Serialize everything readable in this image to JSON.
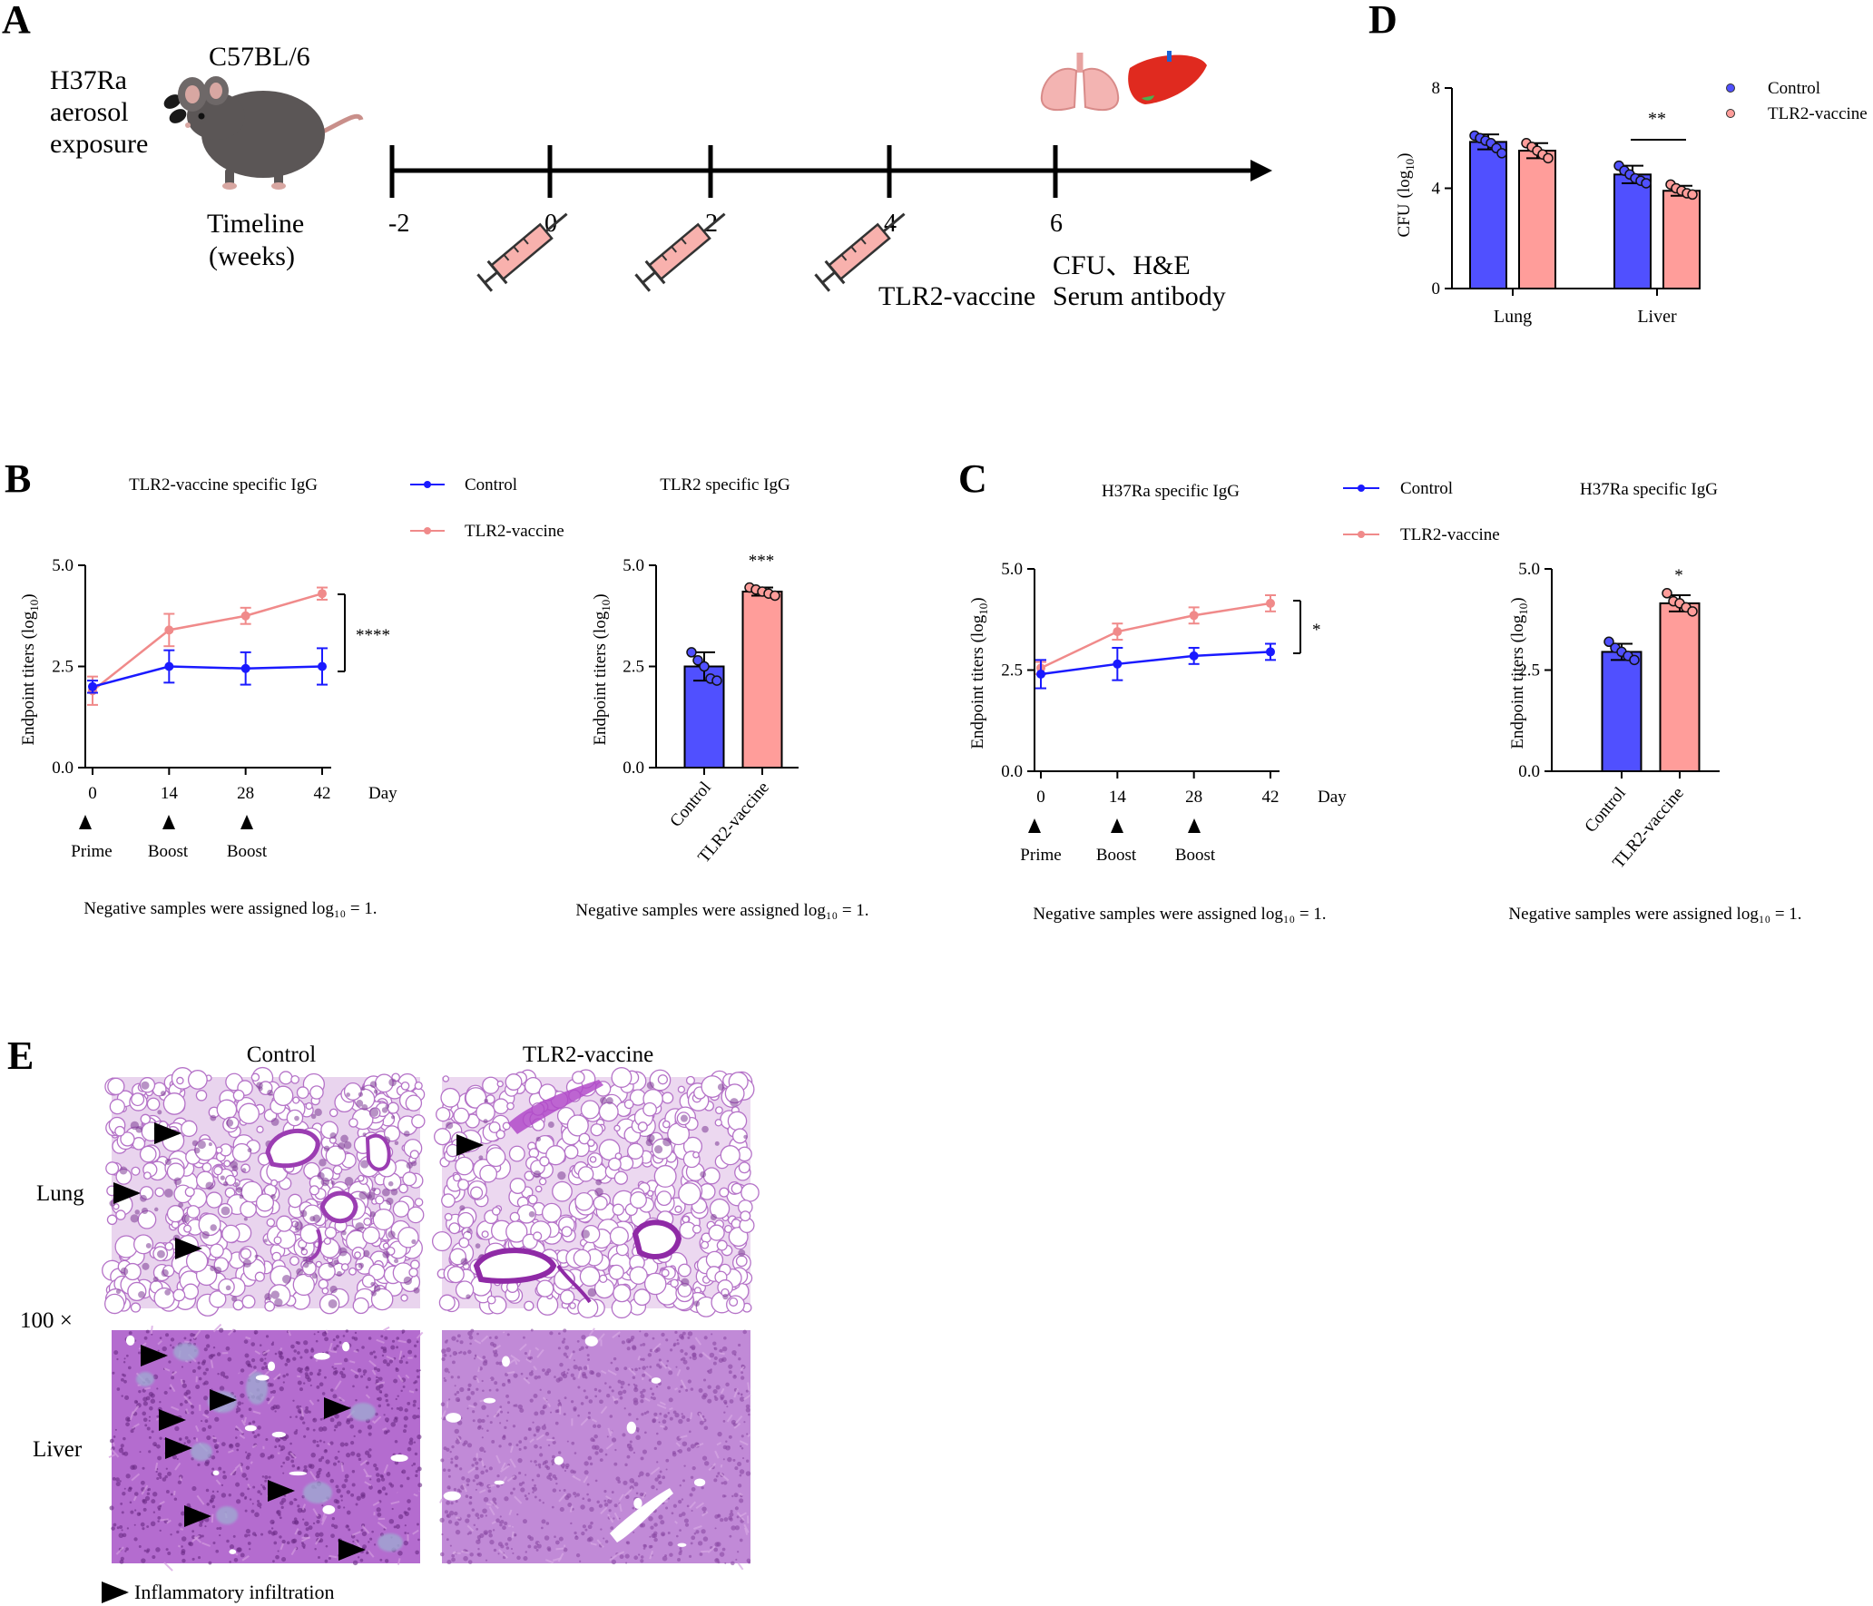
{
  "panels": {
    "A": {
      "letter": "A",
      "strain": "C57BL/6",
      "exposure": [
        "H37Ra",
        "aerosol",
        "exposure"
      ],
      "timeline_caption": [
        "Timeline",
        "(weeks)"
      ],
      "weeks": [
        "-2",
        "0",
        "2",
        "4",
        "6"
      ],
      "vaccine_label": "TLR2-vaccine",
      "endpoint_labels": [
        "CFU、H&E",
        "Serum antibody"
      ],
      "organ_icons": [
        "lungs-icon",
        "liver-icon"
      ],
      "mouse_icon": "mouse-icon",
      "syringe_icon": "syringe-icon"
    },
    "B": {
      "letter": "B"
    },
    "C": {
      "letter": "C"
    },
    "D": {
      "letter": "D"
    },
    "E": {
      "letter": "E",
      "col_labels": [
        "Control",
        "TLR2-vaccine"
      ],
      "row_labels": [
        "Lung",
        "Liver"
      ],
      "magnification": "100 ×",
      "legend": "Inflammatory infiltration",
      "arrow_icon": "arrow-right-icon",
      "arrow_counts": {
        "lung_control": 3,
        "lung_vaccine": 1,
        "liver_control": 9,
        "liver_vaccine": 0
      }
    }
  },
  "colors": {
    "control_line": "#1a1aff",
    "vaccine_line": "#f08a8a",
    "control_bar": "#5050ff",
    "vaccine_bar": "#ff9d9a",
    "stain_purple": "#b070c8",
    "stain_light": "#e6cdec"
  },
  "chart_data": [
    {
      "id": "B-line",
      "type": "line",
      "title": "TLR2-vaccine specific IgG",
      "xlabel": "Day",
      "ylabel": "Endpoint titers (log10)",
      "x": [
        0,
        14,
        28,
        42
      ],
      "x_ticks": [
        "0",
        "14",
        "28",
        "42"
      ],
      "y_ticks": [
        "0.0",
        "2.5",
        "5.0"
      ],
      "ylim": [
        0,
        5
      ],
      "series": [
        {
          "name": "Control",
          "values": [
            2.0,
            2.5,
            2.45,
            2.5
          ],
          "errors": [
            0.15,
            0.4,
            0.4,
            0.45
          ]
        },
        {
          "name": "TLR2-vaccine",
          "values": [
            1.9,
            3.4,
            3.75,
            4.3
          ],
          "errors": [
            0.35,
            0.4,
            0.2,
            0.15
          ]
        }
      ],
      "significance": "****",
      "events": [
        "Prime",
        "Boost",
        "Boost"
      ],
      "legend_position": "right",
      "footnote": "Negative samples were assigned log₁₀ = 1."
    },
    {
      "id": "B-bar",
      "type": "bar",
      "title": "TLR2 specific IgG",
      "ylabel": "Endpoint titers (log10)",
      "categories": [
        "Control",
        "TLR2-vaccine"
      ],
      "values": [
        2.5,
        4.35
      ],
      "errors": [
        0.35,
        0.1
      ],
      "points": [
        [
          2.85,
          2.65,
          2.5,
          2.2,
          2.15
        ],
        [
          4.45,
          4.4,
          4.35,
          4.3,
          4.25
        ]
      ],
      "y_ticks": [
        "0.0",
        "2.5",
        "5.0"
      ],
      "ylim": [
        0,
        5
      ],
      "significance": "***",
      "footnote": "Negative samples were assigned log₁₀ = 1."
    },
    {
      "id": "C-line",
      "type": "line",
      "title": "H37Ra specific IgG",
      "xlabel": "Day",
      "ylabel": "Endpoint titers (log10)",
      "x": [
        0,
        14,
        28,
        42
      ],
      "x_ticks": [
        "0",
        "14",
        "28",
        "42"
      ],
      "y_ticks": [
        "0.0",
        "2.5",
        "5.0"
      ],
      "ylim": [
        0,
        5
      ],
      "series": [
        {
          "name": "Control",
          "values": [
            2.4,
            2.65,
            2.85,
            2.95
          ],
          "errors": [
            0.35,
            0.4,
            0.2,
            0.2
          ]
        },
        {
          "name": "TLR2-vaccine",
          "values": [
            2.55,
            3.45,
            3.85,
            4.15
          ],
          "errors": [
            0.15,
            0.2,
            0.2,
            0.2
          ]
        }
      ],
      "significance": "*",
      "events": [
        "Prime",
        "Boost",
        "Boost"
      ],
      "legend_position": "right",
      "footnote": "Negative samples were assigned log₁₀ = 1."
    },
    {
      "id": "C-bar",
      "type": "bar",
      "title": "H37Ra specific IgG",
      "ylabel": "Endpoint titers (log10)",
      "categories": [
        "Control",
        "TLR2-vaccine"
      ],
      "values": [
        2.95,
        4.15
      ],
      "errors": [
        0.2,
        0.2
      ],
      "points": [
        [
          3.2,
          3.05,
          2.95,
          2.85,
          2.75
        ],
        [
          4.4,
          4.2,
          4.15,
          4.05,
          3.95
        ]
      ],
      "y_ticks": [
        "0.0",
        "2.5",
        "5.0"
      ],
      "ylim": [
        0,
        5
      ],
      "significance": "*",
      "footnote": "Negative samples were assigned log₁₀ = 1."
    },
    {
      "id": "D-bar",
      "type": "bar",
      "ylabel": "CFU (log10)",
      "categories": [
        "Lung",
        "Liver"
      ],
      "series": [
        {
          "name": "Control",
          "values": [
            5.85,
            4.55
          ],
          "errors": [
            0.3,
            0.35
          ],
          "points": [
            [
              6.1,
              6.0,
              5.9,
              5.8,
              5.6,
              5.4
            ],
            [
              4.9,
              4.7,
              4.55,
              4.4,
              4.3,
              4.2
            ]
          ]
        },
        {
          "name": "TLR2-vaccine",
          "values": [
            5.5,
            3.9
          ],
          "errors": [
            0.3,
            0.2
          ],
          "points": [
            [
              5.8,
              5.65,
              5.5,
              5.35,
              5.2
            ],
            [
              4.15,
              4.0,
              3.9,
              3.8,
              3.75
            ]
          ]
        }
      ],
      "y_ticks": [
        "0",
        "4",
        "8"
      ],
      "ylim": [
        0,
        8
      ],
      "significance": "**",
      "legend_position": "top-right"
    }
  ]
}
